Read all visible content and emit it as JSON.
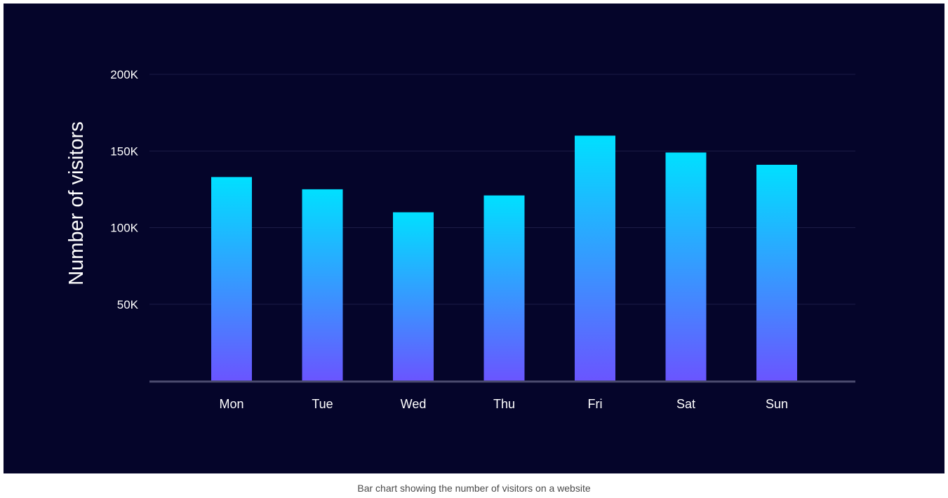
{
  "colors": {
    "background": "#05052a",
    "gridline": "#1c1c47",
    "baseline": "#4a4a6e",
    "bar_top": "#00e0ff",
    "bar_bottom": "#6a55ff",
    "text": "#ffffff",
    "caption_text": "#4a4a4a"
  },
  "caption": "Bar chart showing the number of visitors on a website",
  "chart_data": {
    "type": "bar",
    "categories": [
      "Mon",
      "Tue",
      "Wed",
      "Thu",
      "Fri",
      "Sat",
      "Sun"
    ],
    "values": [
      133000,
      125000,
      110000,
      121000,
      160000,
      149000,
      141000
    ],
    "title": "",
    "xlabel": "",
    "ylabel": "Number of visitors",
    "ylim": [
      0,
      200000
    ],
    "yticks": [
      50000,
      100000,
      150000,
      200000
    ],
    "ytick_labels": [
      "50K",
      "100K",
      "150K",
      "200K"
    ],
    "grid": true,
    "legend": "none"
  }
}
